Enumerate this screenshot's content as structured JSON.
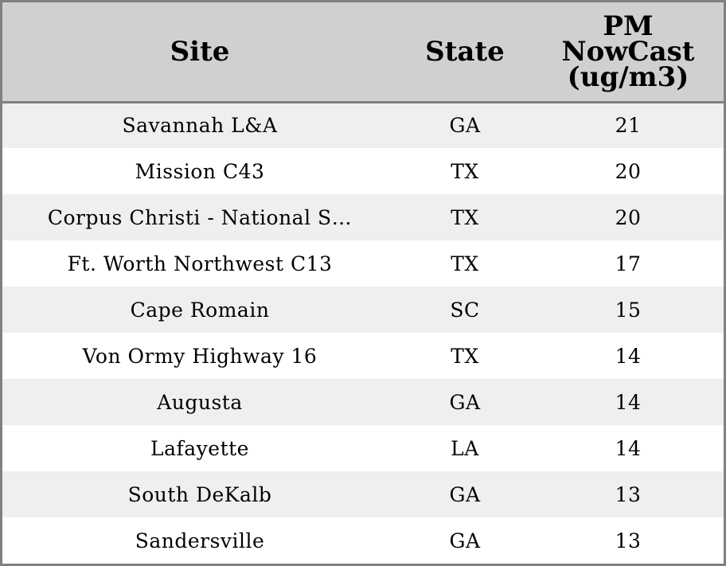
{
  "chart_data": {
    "type": "table",
    "columns": [
      "Site",
      "State",
      "PM NowCast (ug/m3)"
    ],
    "header_lines": {
      "site": [
        "Site"
      ],
      "state": [
        "State"
      ],
      "pm": [
        "PM",
        "NowCast",
        "(ug/m3)"
      ]
    },
    "rows": [
      {
        "site": "Savannah L&A",
        "state": "GA",
        "pm": 21
      },
      {
        "site": "Mission C43",
        "state": "TX",
        "pm": 20
      },
      {
        "site": "Corpus Christi - National S…",
        "state": "TX",
        "pm": 20
      },
      {
        "site": "Ft. Worth Northwest C13",
        "state": "TX",
        "pm": 17
      },
      {
        "site": "Cape Romain",
        "state": "SC",
        "pm": 15
      },
      {
        "site": "Von Ormy Highway 16",
        "state": "TX",
        "pm": 14
      },
      {
        "site": "Augusta",
        "state": "GA",
        "pm": 14
      },
      {
        "site": "Lafayette",
        "state": "LA",
        "pm": 14
      },
      {
        "site": "South DeKalb",
        "state": "GA",
        "pm": 13
      },
      {
        "site": "Sandersville",
        "state": "GA",
        "pm": 13
      }
    ],
    "colors": {
      "header_bg": "#d0d0d0",
      "row_odd_bg": "#efefef",
      "row_even_bg": "#ffffff",
      "border": "#808080"
    }
  }
}
